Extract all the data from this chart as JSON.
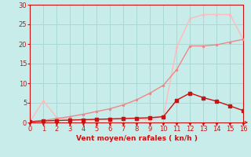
{
  "xlabel": "Vent moyen/en rafales ( kn/h )",
  "xlim": [
    0,
    16
  ],
  "ylim": [
    0,
    30
  ],
  "yticks": [
    0,
    5,
    10,
    15,
    20,
    25,
    30
  ],
  "xticks": [
    0,
    1,
    2,
    3,
    4,
    5,
    6,
    7,
    8,
    9,
    10,
    11,
    12,
    13,
    14,
    15,
    16
  ],
  "background_color": "#c8ecea",
  "grid_color": "#aad8d4",
  "line_dark_x": [
    0,
    1,
    2,
    3,
    4,
    5,
    6,
    7,
    8,
    9,
    10,
    11,
    12,
    13,
    14,
    15,
    16
  ],
  "line_dark_y": [
    0.2,
    0.4,
    0.5,
    0.6,
    0.7,
    0.8,
    0.9,
    1.0,
    1.1,
    1.2,
    1.5,
    5.7,
    7.5,
    6.3,
    5.4,
    4.2,
    3.0
  ],
  "line_dark_color": "#cc1111",
  "line_mid_x": [
    0,
    1,
    2,
    3,
    4,
    5,
    6,
    7,
    8,
    9,
    10,
    11,
    12,
    13,
    14,
    15,
    16
  ],
  "line_mid_y": [
    0.2,
    0.5,
    1.0,
    1.5,
    2.1,
    2.8,
    3.5,
    4.5,
    5.8,
    7.5,
    9.5,
    13.5,
    19.5,
    19.5,
    19.8,
    20.5,
    21.2
  ],
  "line_mid_color": "#ee8888",
  "line_light_x": [
    0,
    1,
    2,
    3,
    4,
    5,
    6,
    7,
    8,
    9,
    10,
    11,
    12,
    13,
    14,
    15,
    16
  ],
  "line_light_y": [
    0.3,
    5.5,
    1.2,
    0.9,
    0.8,
    0.8,
    0.8,
    0.9,
    0.9,
    0.6,
    1.5,
    19.2,
    26.5,
    27.5,
    27.5,
    27.5,
    21.0
  ],
  "line_light_color": "#ffbbbb",
  "tick_color": "#cc1111",
  "label_color": "#cc1111",
  "spine_color": "#cc1111"
}
